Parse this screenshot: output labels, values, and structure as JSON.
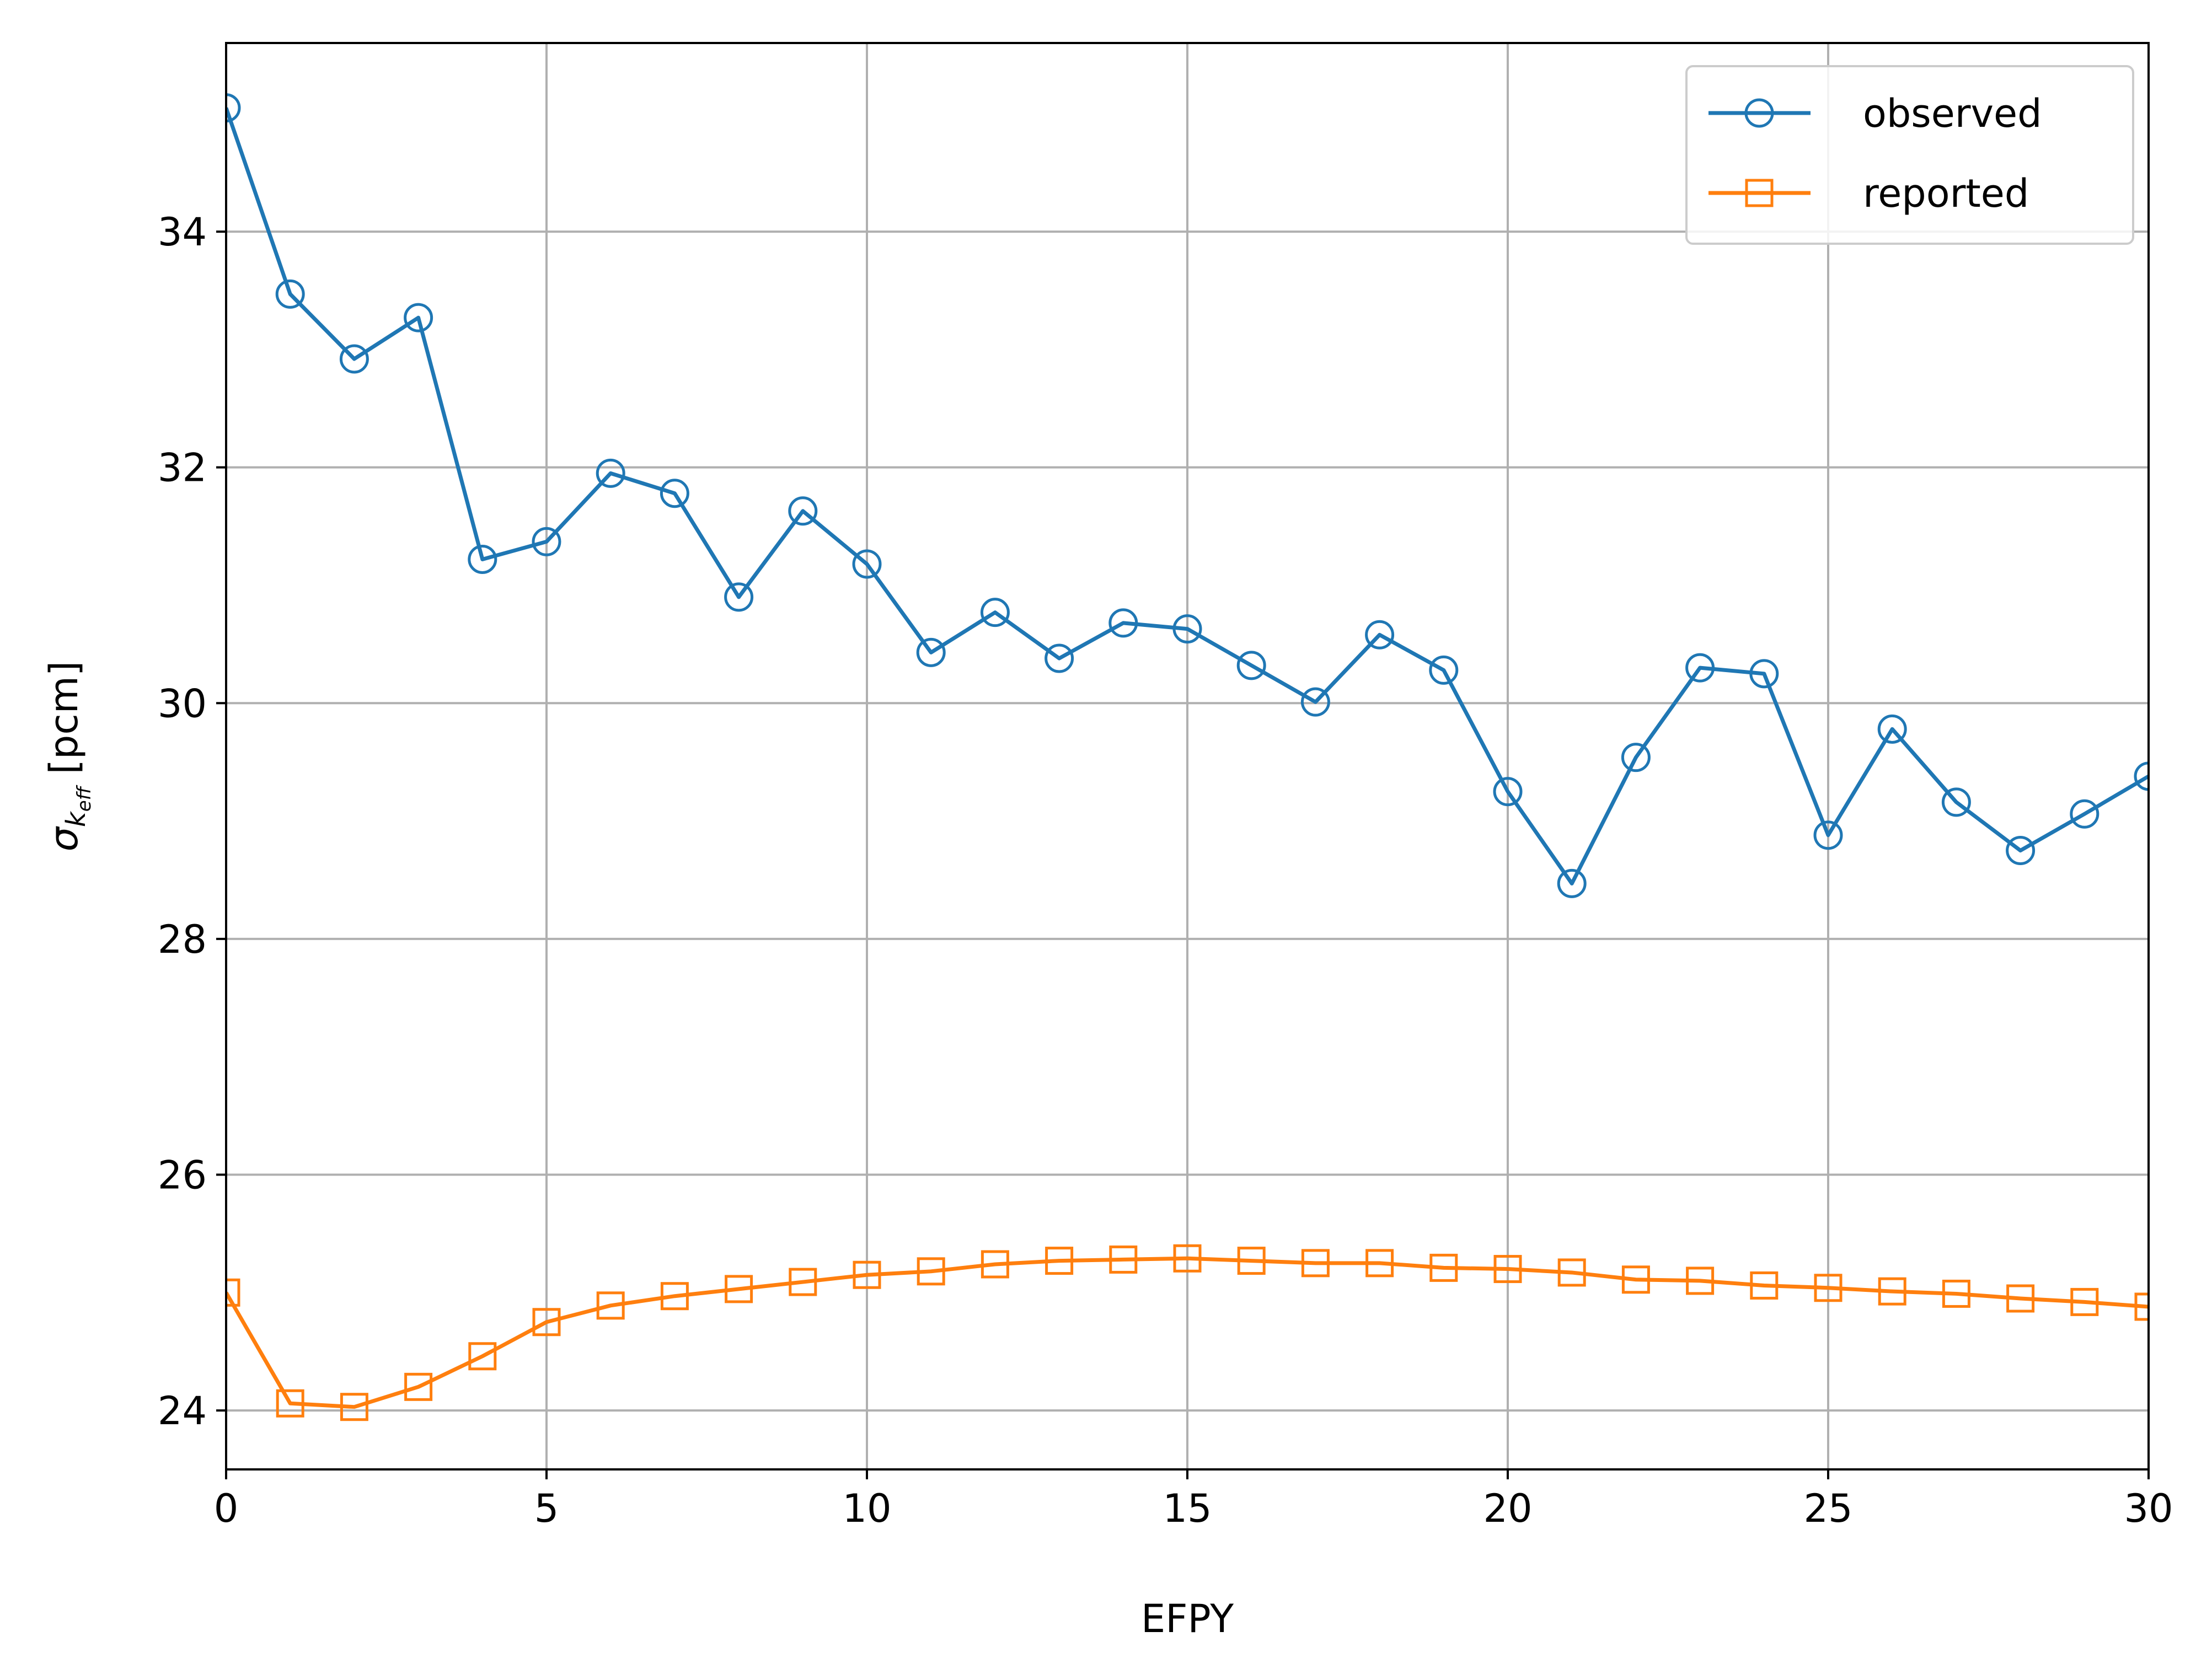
{
  "chart_data": {
    "type": "line",
    "xlabel": "EFPY",
    "ylabel": {
      "symbol": "σ",
      "subscript_base": "k",
      "subscript_sub": "eff",
      "unit": " [pcm]"
    },
    "xlim": [
      0,
      30
    ],
    "ylim": [
      23.5,
      35.6
    ],
    "x_ticks": [
      0,
      5,
      10,
      15,
      20,
      25,
      30
    ],
    "y_ticks": [
      24,
      26,
      28,
      30,
      32,
      34
    ],
    "grid": true,
    "legend_position": "top-right",
    "x": [
      0,
      1,
      2,
      3,
      4,
      5,
      6,
      7,
      8,
      9,
      10,
      11,
      12,
      13,
      14,
      15,
      16,
      17,
      18,
      19,
      20,
      21,
      22,
      23,
      24,
      25,
      26,
      27,
      28,
      29,
      30
    ],
    "series": [
      {
        "name": "observed",
        "color": "#1f77b4",
        "marker": "circle",
        "values": [
          35.05,
          33.47,
          32.92,
          33.27,
          31.22,
          31.37,
          31.95,
          31.78,
          30.9,
          31.63,
          31.18,
          30.43,
          30.77,
          30.38,
          30.68,
          30.63,
          30.32,
          30.01,
          30.58,
          30.28,
          29.25,
          28.47,
          29.54,
          30.3,
          30.25,
          28.88,
          29.78,
          29.16,
          28.75,
          29.06,
          29.38
        ]
      },
      {
        "name": "reported",
        "color": "#ff7f0e",
        "marker": "square",
        "values": [
          25.0,
          24.06,
          24.03,
          24.2,
          24.46,
          24.75,
          24.89,
          24.97,
          25.03,
          25.09,
          25.15,
          25.18,
          25.24,
          25.27,
          25.28,
          25.29,
          25.27,
          25.25,
          25.25,
          25.21,
          25.2,
          25.17,
          25.11,
          25.1,
          25.06,
          25.04,
          25.01,
          24.99,
          24.95,
          24.92,
          24.88
        ]
      }
    ]
  }
}
